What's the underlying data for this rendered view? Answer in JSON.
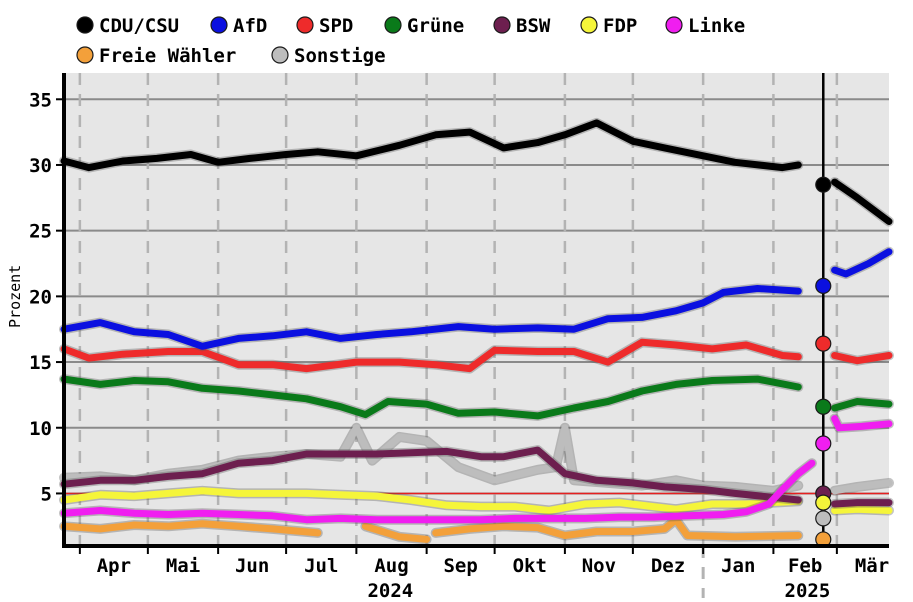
{
  "chart_data": {
    "type": "line",
    "ylabel": "Prozent",
    "ylim": [
      1,
      37
    ],
    "yticks": [
      5,
      10,
      15,
      20,
      25,
      30,
      35
    ],
    "x_range": [
      "2024-03-25",
      "2025-03-24"
    ],
    "months": [
      {
        "label": "Apr",
        "date": "2024-04-01"
      },
      {
        "label": "Mai",
        "date": "2024-05-01"
      },
      {
        "label": "Jun",
        "date": "2024-06-01"
      },
      {
        "label": "Jul",
        "date": "2024-07-01"
      },
      {
        "label": "Aug",
        "date": "2024-08-01"
      },
      {
        "label": "Sep",
        "date": "2024-09-01"
      },
      {
        "label": "Okt",
        "date": "2024-10-01"
      },
      {
        "label": "Nov",
        "date": "2024-11-01"
      },
      {
        "label": "Dez",
        "date": "2024-12-01"
      },
      {
        "label": "Jan",
        "date": "2025-01-01"
      },
      {
        "label": "Feb",
        "date": "2025-02-01"
      },
      {
        "label": "Mär",
        "date": "2025-03-01"
      }
    ],
    "years": [
      {
        "label": "2024",
        "date": "2024-08-01"
      },
      {
        "label": "2025",
        "date": "2025-02-01"
      }
    ],
    "year_boundary": "2025-01-01",
    "election_date": "2025-02-23",
    "threshold": 5,
    "legend_placement": "top",
    "grid": true,
    "series": [
      {
        "name": "CDU/CSU",
        "color": "#000000",
        "result": 28.5,
        "points": [
          [
            "2024-03-25",
            30.3
          ],
          [
            "2024-04-05",
            29.8
          ],
          [
            "2024-04-20",
            30.3
          ],
          [
            "2024-05-05",
            30.5
          ],
          [
            "2024-05-20",
            30.8
          ],
          [
            "2024-06-01",
            30.2
          ],
          [
            "2024-06-15",
            30.5
          ],
          [
            "2024-07-01",
            30.8
          ],
          [
            "2024-07-15",
            31.0
          ],
          [
            "2024-08-01",
            30.7
          ],
          [
            "2024-08-20",
            31.5
          ],
          [
            "2024-09-05",
            32.3
          ],
          [
            "2024-09-20",
            32.5
          ],
          [
            "2024-10-05",
            31.3
          ],
          [
            "2024-10-20",
            31.7
          ],
          [
            "2024-11-01",
            32.3
          ],
          [
            "2024-11-15",
            33.2
          ],
          [
            "2024-12-01",
            31.8
          ],
          [
            "2024-12-15",
            31.3
          ],
          [
            "2025-01-01",
            30.7
          ],
          [
            "2025-01-15",
            30.2
          ],
          [
            "2025-02-05",
            29.8
          ],
          [
            "2025-02-12",
            30.0
          ]
        ],
        "points2": [
          [
            "2025-02-28",
            28.7
          ],
          [
            "2025-03-10",
            27.5
          ],
          [
            "2025-03-24",
            25.7
          ]
        ]
      },
      {
        "name": "AfD",
        "color": "#0b10e0",
        "result": 20.8,
        "points": [
          [
            "2024-03-25",
            17.5
          ],
          [
            "2024-04-10",
            18.0
          ],
          [
            "2024-04-25",
            17.3
          ],
          [
            "2024-05-10",
            17.1
          ],
          [
            "2024-05-25",
            16.2
          ],
          [
            "2024-06-10",
            16.8
          ],
          [
            "2024-06-25",
            17.0
          ],
          [
            "2024-07-10",
            17.3
          ],
          [
            "2024-07-25",
            16.8
          ],
          [
            "2024-08-10",
            17.1
          ],
          [
            "2024-08-25",
            17.3
          ],
          [
            "2024-09-15",
            17.7
          ],
          [
            "2024-10-01",
            17.5
          ],
          [
            "2024-10-20",
            17.6
          ],
          [
            "2024-11-05",
            17.5
          ],
          [
            "2024-11-20",
            18.3
          ],
          [
            "2024-12-05",
            18.4
          ],
          [
            "2024-12-20",
            18.9
          ],
          [
            "2025-01-01",
            19.5
          ],
          [
            "2025-01-10",
            20.3
          ],
          [
            "2025-01-25",
            20.6
          ],
          [
            "2025-02-12",
            20.4
          ]
        ],
        "points2": [
          [
            "2025-02-28",
            22.0
          ],
          [
            "2025-03-05",
            21.7
          ],
          [
            "2025-03-15",
            22.5
          ],
          [
            "2025-03-24",
            23.4
          ]
        ]
      },
      {
        "name": "SPD",
        "color": "#ee2b2b",
        "result": 16.4,
        "points": [
          [
            "2024-03-25",
            16.0
          ],
          [
            "2024-04-05",
            15.3
          ],
          [
            "2024-04-20",
            15.6
          ],
          [
            "2024-05-10",
            15.8
          ],
          [
            "2024-05-25",
            15.8
          ],
          [
            "2024-06-10",
            14.8
          ],
          [
            "2024-06-25",
            14.8
          ],
          [
            "2024-07-10",
            14.5
          ],
          [
            "2024-08-01",
            15.0
          ],
          [
            "2024-08-20",
            15.0
          ],
          [
            "2024-09-05",
            14.8
          ],
          [
            "2024-09-20",
            14.5
          ],
          [
            "2024-10-01",
            15.9
          ],
          [
            "2024-10-20",
            15.8
          ],
          [
            "2024-11-05",
            15.8
          ],
          [
            "2024-11-20",
            15.0
          ],
          [
            "2024-12-05",
            16.5
          ],
          [
            "2024-12-20",
            16.3
          ],
          [
            "2025-01-05",
            16.0
          ],
          [
            "2025-01-20",
            16.3
          ],
          [
            "2025-02-05",
            15.5
          ],
          [
            "2025-02-12",
            15.4
          ]
        ],
        "points2": [
          [
            "2025-02-28",
            15.5
          ],
          [
            "2025-03-10",
            15.1
          ],
          [
            "2025-03-24",
            15.5
          ]
        ]
      },
      {
        "name": "Grüne",
        "color": "#0a7a1a",
        "result": 11.6,
        "points": [
          [
            "2024-03-25",
            13.7
          ],
          [
            "2024-04-10",
            13.3
          ],
          [
            "2024-04-25",
            13.6
          ],
          [
            "2024-05-10",
            13.5
          ],
          [
            "2024-05-25",
            13.0
          ],
          [
            "2024-06-10",
            12.8
          ],
          [
            "2024-06-25",
            12.5
          ],
          [
            "2024-07-10",
            12.2
          ],
          [
            "2024-07-25",
            11.6
          ],
          [
            "2024-08-05",
            11.0
          ],
          [
            "2024-08-15",
            12.0
          ],
          [
            "2024-09-01",
            11.8
          ],
          [
            "2024-09-15",
            11.1
          ],
          [
            "2024-10-01",
            11.2
          ],
          [
            "2024-10-20",
            10.9
          ],
          [
            "2024-11-05",
            11.5
          ],
          [
            "2024-11-20",
            12.0
          ],
          [
            "2024-12-05",
            12.8
          ],
          [
            "2024-12-20",
            13.3
          ],
          [
            "2025-01-05",
            13.6
          ],
          [
            "2025-01-25",
            13.7
          ],
          [
            "2025-02-12",
            13.1
          ]
        ],
        "points2": [
          [
            "2025-02-28",
            11.5
          ],
          [
            "2025-03-10",
            12.0
          ],
          [
            "2025-03-24",
            11.8
          ]
        ]
      },
      {
        "name": "BSW",
        "color": "#6d1f4f",
        "result": 5.0,
        "points": [
          [
            "2024-03-25",
            5.7
          ],
          [
            "2024-04-10",
            6.0
          ],
          [
            "2024-04-25",
            6.0
          ],
          [
            "2024-05-10",
            6.3
          ],
          [
            "2024-05-25",
            6.5
          ],
          [
            "2024-06-10",
            7.3
          ],
          [
            "2024-06-25",
            7.5
          ],
          [
            "2024-07-10",
            8.0
          ],
          [
            "2024-07-25",
            8.0
          ],
          [
            "2024-08-10",
            8.0
          ],
          [
            "2024-08-25",
            8.1
          ],
          [
            "2024-09-10",
            8.2
          ],
          [
            "2024-09-25",
            7.8
          ],
          [
            "2024-10-05",
            7.8
          ],
          [
            "2024-10-20",
            8.3
          ],
          [
            "2024-11-01",
            6.5
          ],
          [
            "2024-11-15",
            6.0
          ],
          [
            "2024-12-01",
            5.8
          ],
          [
            "2024-12-15",
            5.5
          ],
          [
            "2025-01-01",
            5.3
          ],
          [
            "2025-01-15",
            5.0
          ],
          [
            "2025-02-01",
            4.7
          ],
          [
            "2025-02-12",
            4.5
          ]
        ],
        "points2": [
          [
            "2025-02-28",
            4.2
          ],
          [
            "2025-03-10",
            4.3
          ],
          [
            "2025-03-24",
            4.3
          ]
        ]
      },
      {
        "name": "FDP",
        "color": "#f5f53a",
        "result": 4.3,
        "points": [
          [
            "2024-03-25",
            4.5
          ],
          [
            "2024-04-10",
            4.9
          ],
          [
            "2024-04-25",
            4.8
          ],
          [
            "2024-05-10",
            5.0
          ],
          [
            "2024-05-25",
            5.2
          ],
          [
            "2024-06-10",
            5.0
          ],
          [
            "2024-06-25",
            5.0
          ],
          [
            "2024-07-10",
            5.0
          ],
          [
            "2024-07-25",
            4.9
          ],
          [
            "2024-08-10",
            4.8
          ],
          [
            "2024-08-25",
            4.5
          ],
          [
            "2024-09-10",
            4.1
          ],
          [
            "2024-09-25",
            4.0
          ],
          [
            "2024-10-10",
            4.0
          ],
          [
            "2024-10-25",
            3.7
          ],
          [
            "2024-11-10",
            4.2
          ],
          [
            "2024-11-25",
            4.3
          ],
          [
            "2024-12-10",
            4.0
          ],
          [
            "2024-12-20",
            3.8
          ],
          [
            "2025-01-05",
            4.2
          ],
          [
            "2025-01-20",
            4.2
          ],
          [
            "2025-02-12",
            4.4
          ]
        ],
        "points2": [
          [
            "2025-02-28",
            3.7
          ],
          [
            "2025-03-10",
            3.8
          ],
          [
            "2025-03-24",
            3.7
          ]
        ]
      },
      {
        "name": "Linke",
        "color": "#f01ef0",
        "result": 8.8,
        "points": [
          [
            "2024-03-25",
            3.5
          ],
          [
            "2024-04-10",
            3.7
          ],
          [
            "2024-04-25",
            3.5
          ],
          [
            "2024-05-10",
            3.4
          ],
          [
            "2024-05-25",
            3.5
          ],
          [
            "2024-06-10",
            3.4
          ],
          [
            "2024-06-25",
            3.3
          ],
          [
            "2024-07-10",
            3.0
          ],
          [
            "2024-07-25",
            3.1
          ],
          [
            "2024-08-10",
            3.0
          ],
          [
            "2024-08-25",
            3.0
          ],
          [
            "2024-09-10",
            3.0
          ],
          [
            "2024-09-25",
            3.0
          ],
          [
            "2024-10-10",
            3.1
          ],
          [
            "2024-10-25",
            3.1
          ],
          [
            "2024-11-10",
            3.1
          ],
          [
            "2024-11-25",
            3.2
          ],
          [
            "2024-12-10",
            3.2
          ],
          [
            "2024-12-25",
            3.3
          ],
          [
            "2025-01-10",
            3.4
          ],
          [
            "2025-01-20",
            3.6
          ],
          [
            "2025-01-30",
            4.2
          ],
          [
            "2025-02-05",
            5.3
          ],
          [
            "2025-02-12",
            6.5
          ],
          [
            "2025-02-18",
            7.3
          ]
        ],
        "points2": [
          [
            "2025-02-28",
            10.7
          ],
          [
            "2025-03-02",
            10.0
          ],
          [
            "2025-03-12",
            10.1
          ],
          [
            "2025-03-24",
            10.3
          ]
        ]
      },
      {
        "name": "Freie Wähler",
        "color": "#f3a03a",
        "result": 1.5,
        "points": [
          [
            "2024-03-25",
            2.5
          ],
          [
            "2024-04-10",
            2.3
          ],
          [
            "2024-04-25",
            2.6
          ],
          [
            "2024-05-10",
            2.5
          ],
          [
            "2024-05-25",
            2.7
          ],
          [
            "2024-06-10",
            2.5
          ],
          [
            "2024-06-25",
            2.3
          ],
          [
            "2024-07-15",
            2.0
          ]
        ],
        "points2": [
          [
            "2024-08-05",
            2.5
          ],
          [
            "2024-08-20",
            1.7
          ],
          [
            "2024-09-01",
            1.5
          ]
        ],
        "points3": [
          [
            "2024-09-05",
            2.0
          ],
          [
            "2024-09-20",
            2.3
          ],
          [
            "2024-10-05",
            2.5
          ],
          [
            "2024-10-20",
            2.4
          ],
          [
            "2024-11-01",
            1.8
          ],
          [
            "2024-11-15",
            2.1
          ],
          [
            "2024-12-01",
            2.1
          ],
          [
            "2024-12-15",
            2.3
          ],
          [
            "2024-12-20",
            3.0
          ],
          [
            "2024-12-25",
            1.8
          ],
          [
            "2025-01-15",
            1.7
          ],
          [
            "2025-02-12",
            1.8
          ]
        ]
      },
      {
        "name": "Sonstige",
        "color": "#bdbdbd",
        "result": 3.1,
        "points": [
          [
            "2024-03-25",
            6.2
          ],
          [
            "2024-04-10",
            6.3
          ],
          [
            "2024-04-25",
            6.0
          ],
          [
            "2024-05-10",
            6.5
          ],
          [
            "2024-05-25",
            6.8
          ],
          [
            "2024-06-10",
            7.5
          ],
          [
            "2024-06-25",
            7.8
          ],
          [
            "2024-07-10",
            8.0
          ],
          [
            "2024-07-25",
            7.8
          ],
          [
            "2024-08-01",
            10.0
          ],
          [
            "2024-08-08",
            7.5
          ],
          [
            "2024-08-20",
            9.3
          ],
          [
            "2024-09-01",
            9.0
          ],
          [
            "2024-09-15",
            7.0
          ],
          [
            "2024-10-01",
            6.0
          ],
          [
            "2024-10-20",
            6.8
          ],
          [
            "2024-10-28",
            7.0
          ],
          [
            "2024-11-01",
            10.0
          ],
          [
            "2024-11-05",
            6.0
          ],
          [
            "2024-11-20",
            5.8
          ],
          [
            "2024-12-05",
            5.6
          ],
          [
            "2024-12-20",
            6.0
          ],
          [
            "2025-01-01",
            5.6
          ],
          [
            "2025-01-15",
            5.5
          ],
          [
            "2025-02-01",
            5.2
          ],
          [
            "2025-02-12",
            5.6
          ]
        ],
        "points2": [
          [
            "2025-02-28",
            5.2
          ],
          [
            "2025-03-10",
            5.5
          ],
          [
            "2025-03-24",
            5.8
          ]
        ]
      }
    ]
  }
}
